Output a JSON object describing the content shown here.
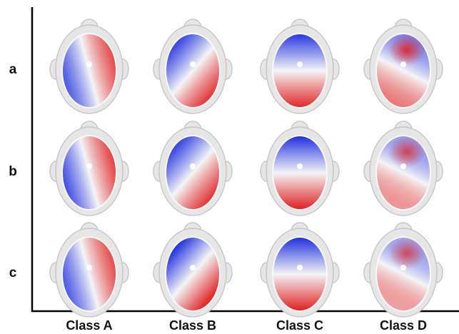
{
  "rows": [
    "a",
    "b",
    "c"
  ],
  "columns": [
    "Class A",
    "Class B",
    "Class C",
    "Class D"
  ]
}
